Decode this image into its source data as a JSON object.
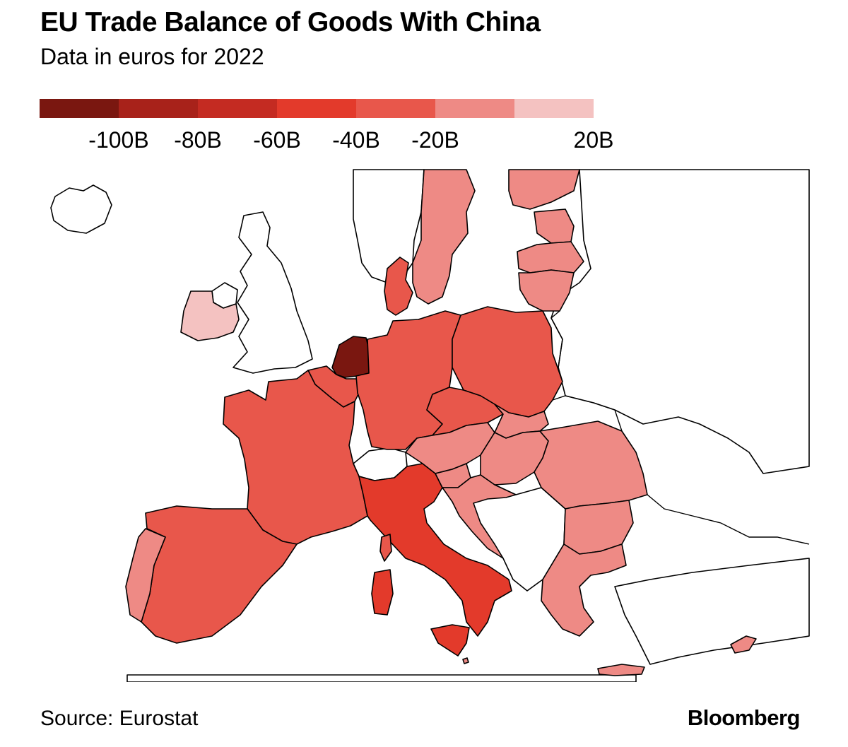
{
  "header": {
    "title": "EU Trade Balance of Goods With China",
    "subtitle": "Data in euros for 2022"
  },
  "legend": {
    "colors": [
      "#7a1710",
      "#a8221a",
      "#c42b22",
      "#e33a2b",
      "#e8574b",
      "#ee8a85",
      "#f4c2c1"
    ],
    "labels": [
      "-100B",
      "-80B",
      "-60B",
      "-40B",
      "-20B",
      "20B"
    ]
  },
  "map": {
    "countries": [
      {
        "name": "netherlands",
        "class": 0
      },
      {
        "name": "italy",
        "class": 3
      },
      {
        "name": "germany",
        "class": 4
      },
      {
        "name": "france",
        "class": 4
      },
      {
        "name": "spain",
        "class": 4
      },
      {
        "name": "belgium",
        "class": 4
      },
      {
        "name": "poland",
        "class": 4
      },
      {
        "name": "czechia",
        "class": 4
      },
      {
        "name": "denmark",
        "class": 4
      },
      {
        "name": "portugal",
        "class": 5
      },
      {
        "name": "austria",
        "class": 5
      },
      {
        "name": "slovakia",
        "class": 5
      },
      {
        "name": "hungary",
        "class": 5
      },
      {
        "name": "slovenia",
        "class": 5
      },
      {
        "name": "croatia",
        "class": 5
      },
      {
        "name": "romania",
        "class": 5
      },
      {
        "name": "bulgaria",
        "class": 5
      },
      {
        "name": "greece",
        "class": 5
      },
      {
        "name": "sweden",
        "class": 5
      },
      {
        "name": "finland",
        "class": 5
      },
      {
        "name": "estonia",
        "class": 5
      },
      {
        "name": "latvia",
        "class": 5
      },
      {
        "name": "lithuania",
        "class": 5
      },
      {
        "name": "cyprus",
        "class": 5
      },
      {
        "name": "malta",
        "class": 5
      },
      {
        "name": "ireland",
        "class": 6
      }
    ]
  },
  "footer": {
    "source": "Source: Eurostat",
    "brand": "Bloomberg"
  }
}
